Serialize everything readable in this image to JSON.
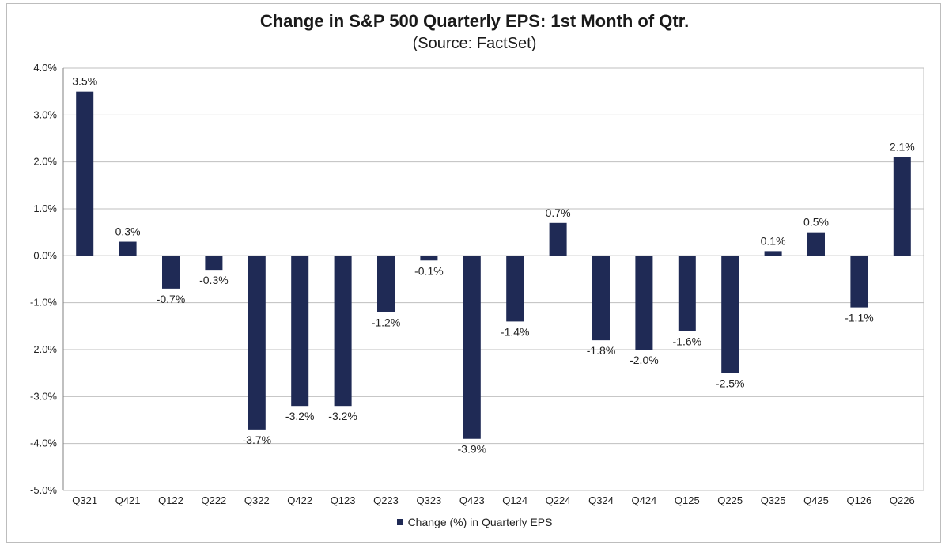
{
  "chart_data": {
    "type": "bar",
    "title": "Change in S&P 500 Quarterly EPS: 1st Month of Qtr.",
    "subtitle": "(Source: FactSet)",
    "categories": [
      "Q321",
      "Q421",
      "Q122",
      "Q222",
      "Q322",
      "Q422",
      "Q123",
      "Q223",
      "Q323",
      "Q423",
      "Q124",
      "Q224",
      "Q324",
      "Q424",
      "Q125",
      "Q225",
      "Q325",
      "Q425",
      "Q126",
      "Q226"
    ],
    "series": [
      {
        "name": "Change (%) in Quarterly EPS",
        "values": [
          3.5,
          0.3,
          -0.7,
          -0.3,
          -3.7,
          -3.2,
          -3.2,
          -1.2,
          -0.1,
          -3.9,
          -1.4,
          0.7,
          -1.8,
          -2.0,
          -1.6,
          -2.5,
          0.1,
          0.5,
          -1.1,
          2.1
        ],
        "data_labels": [
          "3.5%",
          "0.3%",
          "-0.7%",
          "-0.3%",
          "-3.7%",
          "-3.2%",
          "-3.2%",
          "-1.2%",
          "-0.1%",
          "-3.9%",
          "-1.4%",
          "0.7%",
          "-1.8%",
          "-2.0%",
          "-1.6%",
          "-2.5%",
          "0.1%",
          "0.5%",
          "-1.1%",
          "2.1%"
        ]
      }
    ],
    "ylim": [
      -5.0,
      4.0
    ],
    "yticks": [
      4.0,
      3.0,
      2.0,
      1.0,
      0.0,
      -1.0,
      -2.0,
      -3.0,
      -4.0,
      -5.0
    ],
    "ytick_labels": [
      "4.0%",
      "3.0%",
      "2.0%",
      "1.0%",
      "0.0%",
      "-1.0%",
      "-2.0%",
      "-3.0%",
      "-4.0%",
      "-5.0%"
    ],
    "grid": true,
    "legend_position": "bottom",
    "bar_color": "#1f2a55",
    "grid_color": "#bfbfbf",
    "axis_color": "#808080"
  }
}
